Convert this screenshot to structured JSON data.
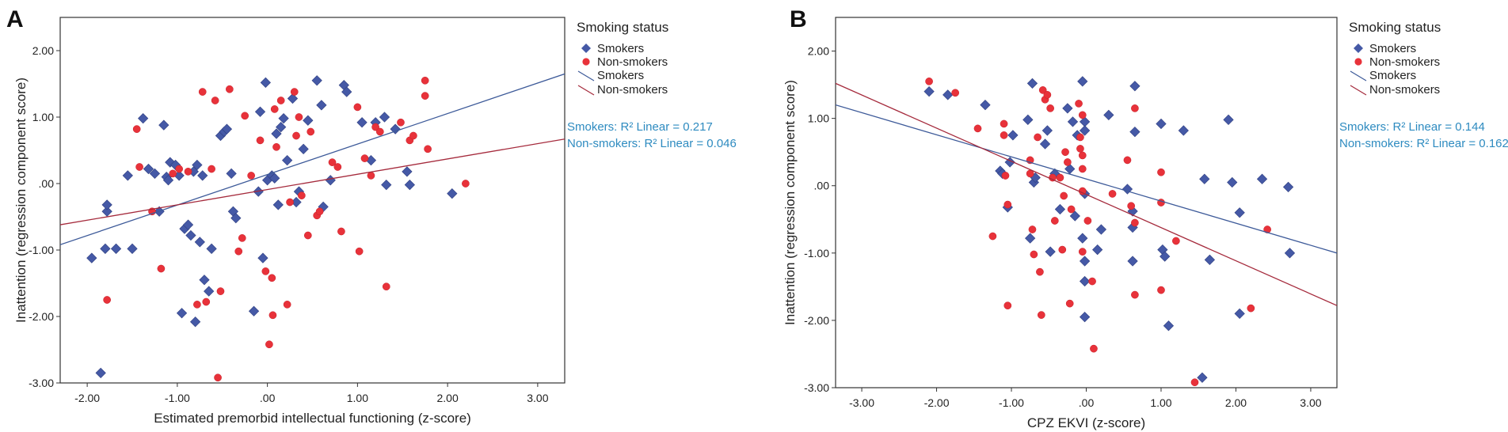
{
  "colors": {
    "smokers": "#4559a6",
    "non_smokers": "#e8323a",
    "smokers_line": "#3d5a99",
    "non_smokers_line": "#a52a3c",
    "annotation": "#2e8bc0"
  },
  "chart_data": [
    {
      "panel": "A",
      "type": "scatter",
      "xlabel": "Estimated premorbid intellectual functioning (z-score)",
      "ylabel": "Inattention (regression component score)",
      "xlim": [
        -2.3,
        3.3
      ],
      "ylim": [
        -3.0,
        2.5
      ],
      "xticks": [
        -2,
        -1,
        0,
        1,
        2,
        3
      ],
      "xtick_labels": [
        "-2.00",
        "-1.00",
        ".00",
        "1.00",
        "2.00",
        "3.00"
      ],
      "yticks": [
        -3,
        -2,
        -1,
        0,
        1,
        2
      ],
      "ytick_labels": [
        "-3.00",
        "-2.00",
        "-1.00",
        ".00",
        "1.00",
        "2.00"
      ],
      "legend": {
        "title": "Smoking status",
        "entries": [
          "Smokers",
          "Non-smokers",
          "Smokers",
          "Non-smokers"
        ]
      },
      "annotations": [
        "Smokers: R² Linear = 0.217",
        "Non-smokers: R² Linear = 0.046"
      ],
      "fit_lines": [
        {
          "name": "Smokers",
          "x": [
            -2.3,
            3.3
          ],
          "y": [
            -0.92,
            1.65
          ]
        },
        {
          "name": "Non-smokers",
          "x": [
            -2.3,
            3.3
          ],
          "y": [
            -0.62,
            0.67
          ]
        }
      ],
      "series": [
        {
          "name": "Smokers",
          "marker": "diamond",
          "points": [
            [
              -1.95,
              -1.12
            ],
            [
              -1.85,
              -2.85
            ],
            [
              -1.8,
              -0.98
            ],
            [
              -1.78,
              -0.42
            ],
            [
              -1.78,
              -0.32
            ],
            [
              -1.68,
              -0.98
            ],
            [
              -1.55,
              0.12
            ],
            [
              -1.5,
              -0.98
            ],
            [
              -1.38,
              0.98
            ],
            [
              -1.32,
              0.22
            ],
            [
              -1.25,
              0.15
            ],
            [
              -1.2,
              -0.42
            ],
            [
              -1.15,
              0.88
            ],
            [
              -1.12,
              0.1
            ],
            [
              -1.1,
              0.05
            ],
            [
              -1.08,
              0.32
            ],
            [
              -1.02,
              0.28
            ],
            [
              -0.98,
              0.12
            ],
            [
              -0.95,
              -1.95
            ],
            [
              -0.92,
              -0.68
            ],
            [
              -0.88,
              -0.62
            ],
            [
              -0.85,
              -0.78
            ],
            [
              -0.82,
              0.18
            ],
            [
              -0.8,
              -2.08
            ],
            [
              -0.78,
              0.28
            ],
            [
              -0.75,
              -0.88
            ],
            [
              -0.72,
              0.12
            ],
            [
              -0.7,
              -1.45
            ],
            [
              -0.65,
              -1.62
            ],
            [
              -0.62,
              -0.98
            ],
            [
              -0.52,
              0.72
            ],
            [
              -0.48,
              0.78
            ],
            [
              -0.45,
              0.82
            ],
            [
              -0.4,
              0.15
            ],
            [
              -0.38,
              -0.42
            ],
            [
              -0.35,
              -0.52
            ],
            [
              -0.15,
              -1.92
            ],
            [
              -0.1,
              -0.12
            ],
            [
              -0.08,
              1.08
            ],
            [
              -0.05,
              -1.12
            ],
            [
              -0.02,
              1.52
            ],
            [
              0.0,
              0.05
            ],
            [
              0.05,
              0.12
            ],
            [
              0.08,
              0.08
            ],
            [
              0.1,
              0.75
            ],
            [
              0.12,
              -0.32
            ],
            [
              0.15,
              0.85
            ],
            [
              0.18,
              0.98
            ],
            [
              0.22,
              0.35
            ],
            [
              0.28,
              1.28
            ],
            [
              0.32,
              -0.28
            ],
            [
              0.35,
              -0.12
            ],
            [
              0.4,
              0.52
            ],
            [
              0.45,
              0.95
            ],
            [
              0.55,
              1.55
            ],
            [
              0.6,
              1.18
            ],
            [
              0.62,
              -0.35
            ],
            [
              0.7,
              0.05
            ],
            [
              0.85,
              1.48
            ],
            [
              0.88,
              1.38
            ],
            [
              1.05,
              0.92
            ],
            [
              1.15,
              0.35
            ],
            [
              1.2,
              0.92
            ],
            [
              1.3,
              1.0
            ],
            [
              1.32,
              -0.02
            ],
            [
              1.42,
              0.82
            ],
            [
              1.55,
              0.18
            ],
            [
              1.58,
              -0.02
            ],
            [
              2.05,
              -0.15
            ]
          ]
        },
        {
          "name": "Non-smokers",
          "marker": "circle",
          "points": [
            [
              -1.78,
              -1.75
            ],
            [
              -1.45,
              0.82
            ],
            [
              -1.42,
              0.25
            ],
            [
              -1.28,
              -0.42
            ],
            [
              -1.18,
              -1.28
            ],
            [
              -1.05,
              0.15
            ],
            [
              -0.98,
              0.22
            ],
            [
              -0.88,
              0.18
            ],
            [
              -0.78,
              -1.82
            ],
            [
              -0.72,
              1.38
            ],
            [
              -0.68,
              -1.78
            ],
            [
              -0.62,
              0.22
            ],
            [
              -0.58,
              1.25
            ],
            [
              -0.52,
              -1.62
            ],
            [
              -0.55,
              -2.92
            ],
            [
              -0.42,
              1.42
            ],
            [
              -0.32,
              -1.02
            ],
            [
              -0.28,
              -0.82
            ],
            [
              -0.25,
              1.02
            ],
            [
              -0.18,
              0.12
            ],
            [
              -0.08,
              0.65
            ],
            [
              -0.02,
              -1.32
            ],
            [
              0.02,
              -2.42
            ],
            [
              0.05,
              -1.42
            ],
            [
              0.06,
              -1.98
            ],
            [
              0.08,
              1.12
            ],
            [
              0.1,
              0.55
            ],
            [
              0.15,
              1.25
            ],
            [
              0.22,
              -1.82
            ],
            [
              0.25,
              -0.28
            ],
            [
              0.3,
              1.38
            ],
            [
              0.32,
              0.72
            ],
            [
              0.35,
              1.0
            ],
            [
              0.38,
              -0.18
            ],
            [
              0.45,
              -0.78
            ],
            [
              0.48,
              0.78
            ],
            [
              0.55,
              -0.48
            ],
            [
              0.58,
              -0.42
            ],
            [
              0.72,
              0.32
            ],
            [
              0.78,
              0.25
            ],
            [
              0.82,
              -0.72
            ],
            [
              1.0,
              1.15
            ],
            [
              1.02,
              -1.02
            ],
            [
              1.08,
              0.38
            ],
            [
              1.15,
              0.12
            ],
            [
              1.2,
              0.85
            ],
            [
              1.25,
              0.78
            ],
            [
              1.32,
              -1.55
            ],
            [
              1.48,
              0.92
            ],
            [
              1.58,
              0.65
            ],
            [
              1.62,
              0.72
            ],
            [
              1.75,
              1.55
            ],
            [
              1.75,
              1.32
            ],
            [
              1.78,
              0.52
            ],
            [
              2.2,
              0.0
            ]
          ]
        }
      ]
    },
    {
      "panel": "B",
      "type": "scatter",
      "xlabel": "CPZ EKVI (z-score)",
      "ylabel": "Inattention (regression component score)",
      "xlim": [
        -3.35,
        3.35
      ],
      "ylim": [
        -3.0,
        2.5
      ],
      "xticks": [
        -3,
        -2,
        -1,
        0,
        1,
        2,
        3
      ],
      "xtick_labels": [
        "-3.00",
        "-2.00",
        "-1.00",
        ".00",
        "1.00",
        "2.00",
        "3.00"
      ],
      "yticks": [
        -3,
        -2,
        -1,
        0,
        1,
        2
      ],
      "ytick_labels": [
        "-3.00",
        "-2.00",
        "-1.00",
        ".00",
        "1.00",
        "2.00"
      ],
      "legend": {
        "title": "Smoking status",
        "entries": [
          "Smokers",
          "Non-smokers",
          "Smokers",
          "Non-smokers"
        ]
      },
      "annotations": [
        "Smokers: R² Linear = 0.144",
        "Non-smokers: R² Linear = 0.162"
      ],
      "fit_lines": [
        {
          "name": "Smokers",
          "x": [
            -3.35,
            3.35
          ],
          "y": [
            1.2,
            -1.0
          ]
        },
        {
          "name": "Non-smokers",
          "x": [
            -3.35,
            3.35
          ],
          "y": [
            1.52,
            -1.78
          ]
        }
      ],
      "series": [
        {
          "name": "Smokers",
          "marker": "diamond",
          "points": [
            [
              -2.1,
              1.4
            ],
            [
              -1.85,
              1.35
            ],
            [
              -1.35,
              1.2
            ],
            [
              -1.15,
              0.22
            ],
            [
              -1.12,
              0.18
            ],
            [
              -1.05,
              -0.32
            ],
            [
              -1.02,
              0.35
            ],
            [
              -0.98,
              0.75
            ],
            [
              -0.78,
              0.98
            ],
            [
              -0.75,
              -0.78
            ],
            [
              -0.72,
              1.52
            ],
            [
              -0.7,
              0.05
            ],
            [
              -0.68,
              0.12
            ],
            [
              -0.55,
              0.62
            ],
            [
              -0.52,
              0.82
            ],
            [
              -0.48,
              -0.98
            ],
            [
              -0.42,
              0.18
            ],
            [
              -0.35,
              -0.35
            ],
            [
              -0.25,
              1.15
            ],
            [
              -0.22,
              0.25
            ],
            [
              -0.18,
              0.95
            ],
            [
              -0.15,
              -0.45
            ],
            [
              -0.12,
              0.75
            ],
            [
              -0.05,
              1.55
            ],
            [
              -0.02,
              0.95
            ],
            [
              -0.02,
              0.82
            ],
            [
              -0.02,
              -0.12
            ],
            [
              -0.02,
              -1.12
            ],
            [
              -0.02,
              -1.42
            ],
            [
              -0.02,
              -1.95
            ],
            [
              -0.05,
              -0.78
            ],
            [
              0.15,
              -0.95
            ],
            [
              0.2,
              -0.65
            ],
            [
              0.3,
              1.05
            ],
            [
              0.55,
              -0.05
            ],
            [
              0.62,
              -0.62
            ],
            [
              0.65,
              1.48
            ],
            [
              0.65,
              0.8
            ],
            [
              0.62,
              -0.38
            ],
            [
              0.62,
              -1.12
            ],
            [
              1.0,
              0.92
            ],
            [
              1.02,
              -0.95
            ],
            [
              1.05,
              -1.05
            ],
            [
              1.1,
              -2.08
            ],
            [
              1.3,
              0.82
            ],
            [
              1.55,
              -2.85
            ],
            [
              1.58,
              0.1
            ],
            [
              1.65,
              -1.1
            ],
            [
              1.9,
              0.98
            ],
            [
              1.95,
              0.05
            ],
            [
              2.05,
              -0.4
            ],
            [
              2.05,
              -1.9
            ],
            [
              2.35,
              0.1
            ],
            [
              2.7,
              -0.02
            ],
            [
              2.72,
              -1.0
            ]
          ]
        },
        {
          "name": "Non-smokers",
          "marker": "circle",
          "points": [
            [
              -2.1,
              1.55
            ],
            [
              -1.75,
              1.38
            ],
            [
              -1.45,
              0.85
            ],
            [
              -1.25,
              -0.75
            ],
            [
              -1.1,
              0.92
            ],
            [
              -1.1,
              0.75
            ],
            [
              -1.08,
              0.15
            ],
            [
              -1.05,
              -0.28
            ],
            [
              -1.05,
              -1.78
            ],
            [
              -0.75,
              0.38
            ],
            [
              -0.75,
              0.18
            ],
            [
              -0.72,
              -0.65
            ],
            [
              -0.7,
              -1.02
            ],
            [
              -0.65,
              0.72
            ],
            [
              -0.62,
              -1.28
            ],
            [
              -0.6,
              -1.92
            ],
            [
              -0.58,
              1.42
            ],
            [
              -0.55,
              1.28
            ],
            [
              -0.52,
              1.35
            ],
            [
              -0.48,
              1.15
            ],
            [
              -0.45,
              0.12
            ],
            [
              -0.42,
              -0.52
            ],
            [
              -0.35,
              0.12
            ],
            [
              -0.32,
              -0.95
            ],
            [
              -0.3,
              -0.15
            ],
            [
              -0.28,
              0.5
            ],
            [
              -0.25,
              0.35
            ],
            [
              -0.22,
              -1.75
            ],
            [
              -0.2,
              -0.35
            ],
            [
              -0.1,
              1.22
            ],
            [
              -0.08,
              0.72
            ],
            [
              -0.08,
              0.55
            ],
            [
              -0.05,
              1.05
            ],
            [
              -0.05,
              0.45
            ],
            [
              -0.05,
              0.25
            ],
            [
              -0.05,
              -0.08
            ],
            [
              -0.05,
              -0.98
            ],
            [
              0.02,
              -0.52
            ],
            [
              0.08,
              -1.42
            ],
            [
              0.1,
              -2.42
            ],
            [
              0.35,
              -0.12
            ],
            [
              0.55,
              0.38
            ],
            [
              0.6,
              -0.3
            ],
            [
              0.65,
              1.15
            ],
            [
              0.65,
              -0.55
            ],
            [
              0.65,
              -1.62
            ],
            [
              1.0,
              -0.25
            ],
            [
              1.0,
              0.2
            ],
            [
              1.0,
              -1.55
            ],
            [
              1.2,
              -0.82
            ],
            [
              1.45,
              -2.92
            ],
            [
              2.2,
              -1.82
            ],
            [
              2.42,
              -0.65
            ]
          ]
        }
      ]
    }
  ]
}
